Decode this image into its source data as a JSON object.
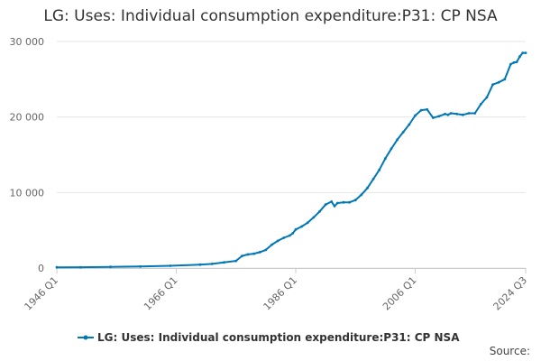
{
  "chart_data": {
    "type": "line",
    "title": "LG: Uses: Individual consumption expenditure:P31: CP NSA",
    "xlabel": "",
    "ylabel": "",
    "ylim": [
      0,
      30000
    ],
    "yticks": [
      0,
      10000,
      20000,
      30000
    ],
    "ytick_labels": [
      "0",
      "10 000",
      "20 000",
      "30 000"
    ],
    "x_range": [
      1946.0,
      2024.5
    ],
    "xticks": [
      1946.0,
      1966.0,
      1986.0,
      2006.0,
      2024.5
    ],
    "xtick_labels": [
      "1946 Q1",
      "1966 Q1",
      "1986 Q1",
      "2006 Q1",
      "2024 Q3"
    ],
    "grid": "horizontal",
    "legend_position": "bottom",
    "series": [
      {
        "name": "LG: Uses: Individual consumption expenditure:P31: CP NSA",
        "color": "#0077b6",
        "x": [
          1946.0,
          1950.0,
          1955.0,
          1960.0,
          1965.0,
          1970.0,
          1972.0,
          1974.0,
          1976.0,
          1977.0,
          1978.0,
          1979.0,
          1980.0,
          1981.0,
          1982.0,
          1983.0,
          1984.0,
          1985.0,
          1985.5,
          1986.0,
          1987.0,
          1988.0,
          1989.0,
          1990.0,
          1991.0,
          1992.0,
          1992.5,
          1993.0,
          1994.0,
          1995.0,
          1996.0,
          1997.0,
          1998.0,
          1999.0,
          2000.0,
          2001.0,
          2002.0,
          2003.0,
          2004.0,
          2005.0,
          2006.0,
          2007.0,
          2008.0,
          2009.0,
          2010.0,
          2011.0,
          2011.5,
          2012.0,
          2013.0,
          2014.0,
          2015.0,
          2016.0,
          2017.0,
          2018.0,
          2019.0,
          2020.0,
          2021.0,
          2022.0,
          2022.5,
          2023.0,
          2023.5,
          2024.0,
          2024.5
        ],
        "y": [
          100,
          110,
          150,
          200,
          300,
          450,
          550,
          750,
          950,
          1600,
          1800,
          1900,
          2100,
          2400,
          3100,
          3600,
          4000,
          4300,
          4600,
          5100,
          5500,
          6000,
          6700,
          7500,
          8400,
          8800,
          8200,
          8600,
          8700,
          8700,
          9000,
          9700,
          10600,
          11800,
          13000,
          14500,
          15800,
          17000,
          18000,
          19000,
          20200,
          20900,
          21000,
          19900,
          20100,
          20400,
          20300,
          20500,
          20400,
          20300,
          20500,
          20500,
          21700,
          22600,
          24300,
          24600,
          25000,
          27000,
          27200,
          27300,
          28000,
          28500,
          28500
        ]
      }
    ]
  },
  "legend": {
    "label": "LG: Uses: Individual consumption expenditure:P31: CP NSA"
  },
  "source": {
    "label": "Source:"
  }
}
